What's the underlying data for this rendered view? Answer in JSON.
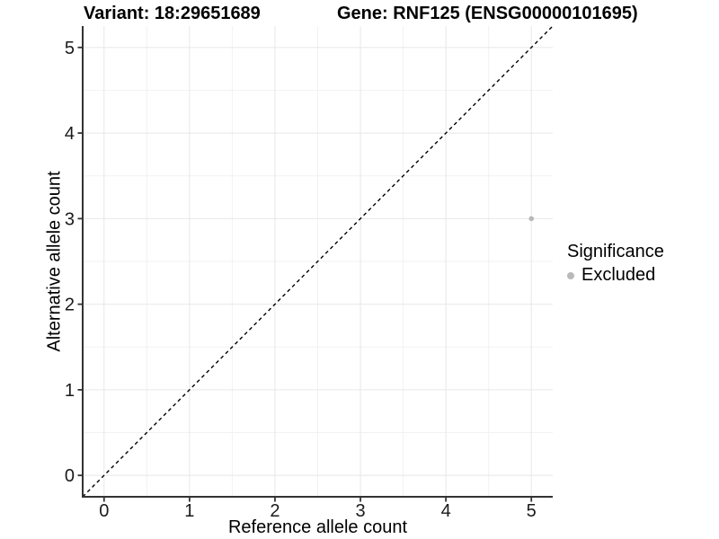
{
  "chart_data": {
    "type": "scatter",
    "title_left": "Variant: 18:29651689",
    "title_right": "Gene: RNF125 (ENSG00000101695)",
    "xlabel": "Reference allele count",
    "ylabel": "Alternative allele count",
    "xlim": [
      -0.25,
      5.25
    ],
    "ylim": [
      -0.25,
      5.25
    ],
    "xticks": [
      "0",
      "1",
      "2",
      "3",
      "4",
      "5"
    ],
    "yticks": [
      "0",
      "1",
      "2",
      "3",
      "4",
      "5"
    ],
    "xtick_values": [
      0,
      1,
      2,
      3,
      4,
      5
    ],
    "ytick_values": [
      0,
      1,
      2,
      3,
      4,
      5
    ],
    "grid": "major+minor",
    "legend": {
      "title": "Significance",
      "position": "right",
      "entries": [
        {
          "label": "Excluded",
          "color": "#b9b9b9",
          "marker": "circle"
        }
      ]
    },
    "series": [
      {
        "name": "Excluded",
        "color": "#b9b9b9",
        "points": [
          {
            "x": 5,
            "y": 3
          }
        ]
      }
    ],
    "reference_line": {
      "kind": "identity",
      "slope": 1,
      "intercept": 0,
      "style": "dashed",
      "color": "#000000"
    }
  },
  "colors": {
    "background": "#ffffff",
    "axis_line": "#333333",
    "tick_mark": "#333333",
    "tick_text": "#1a1a1a",
    "grid_major": "#e7e7e7",
    "grid_minor": "#f2f2f2",
    "excluded_point": "#b9b9b9",
    "reference_line": "#000000"
  }
}
